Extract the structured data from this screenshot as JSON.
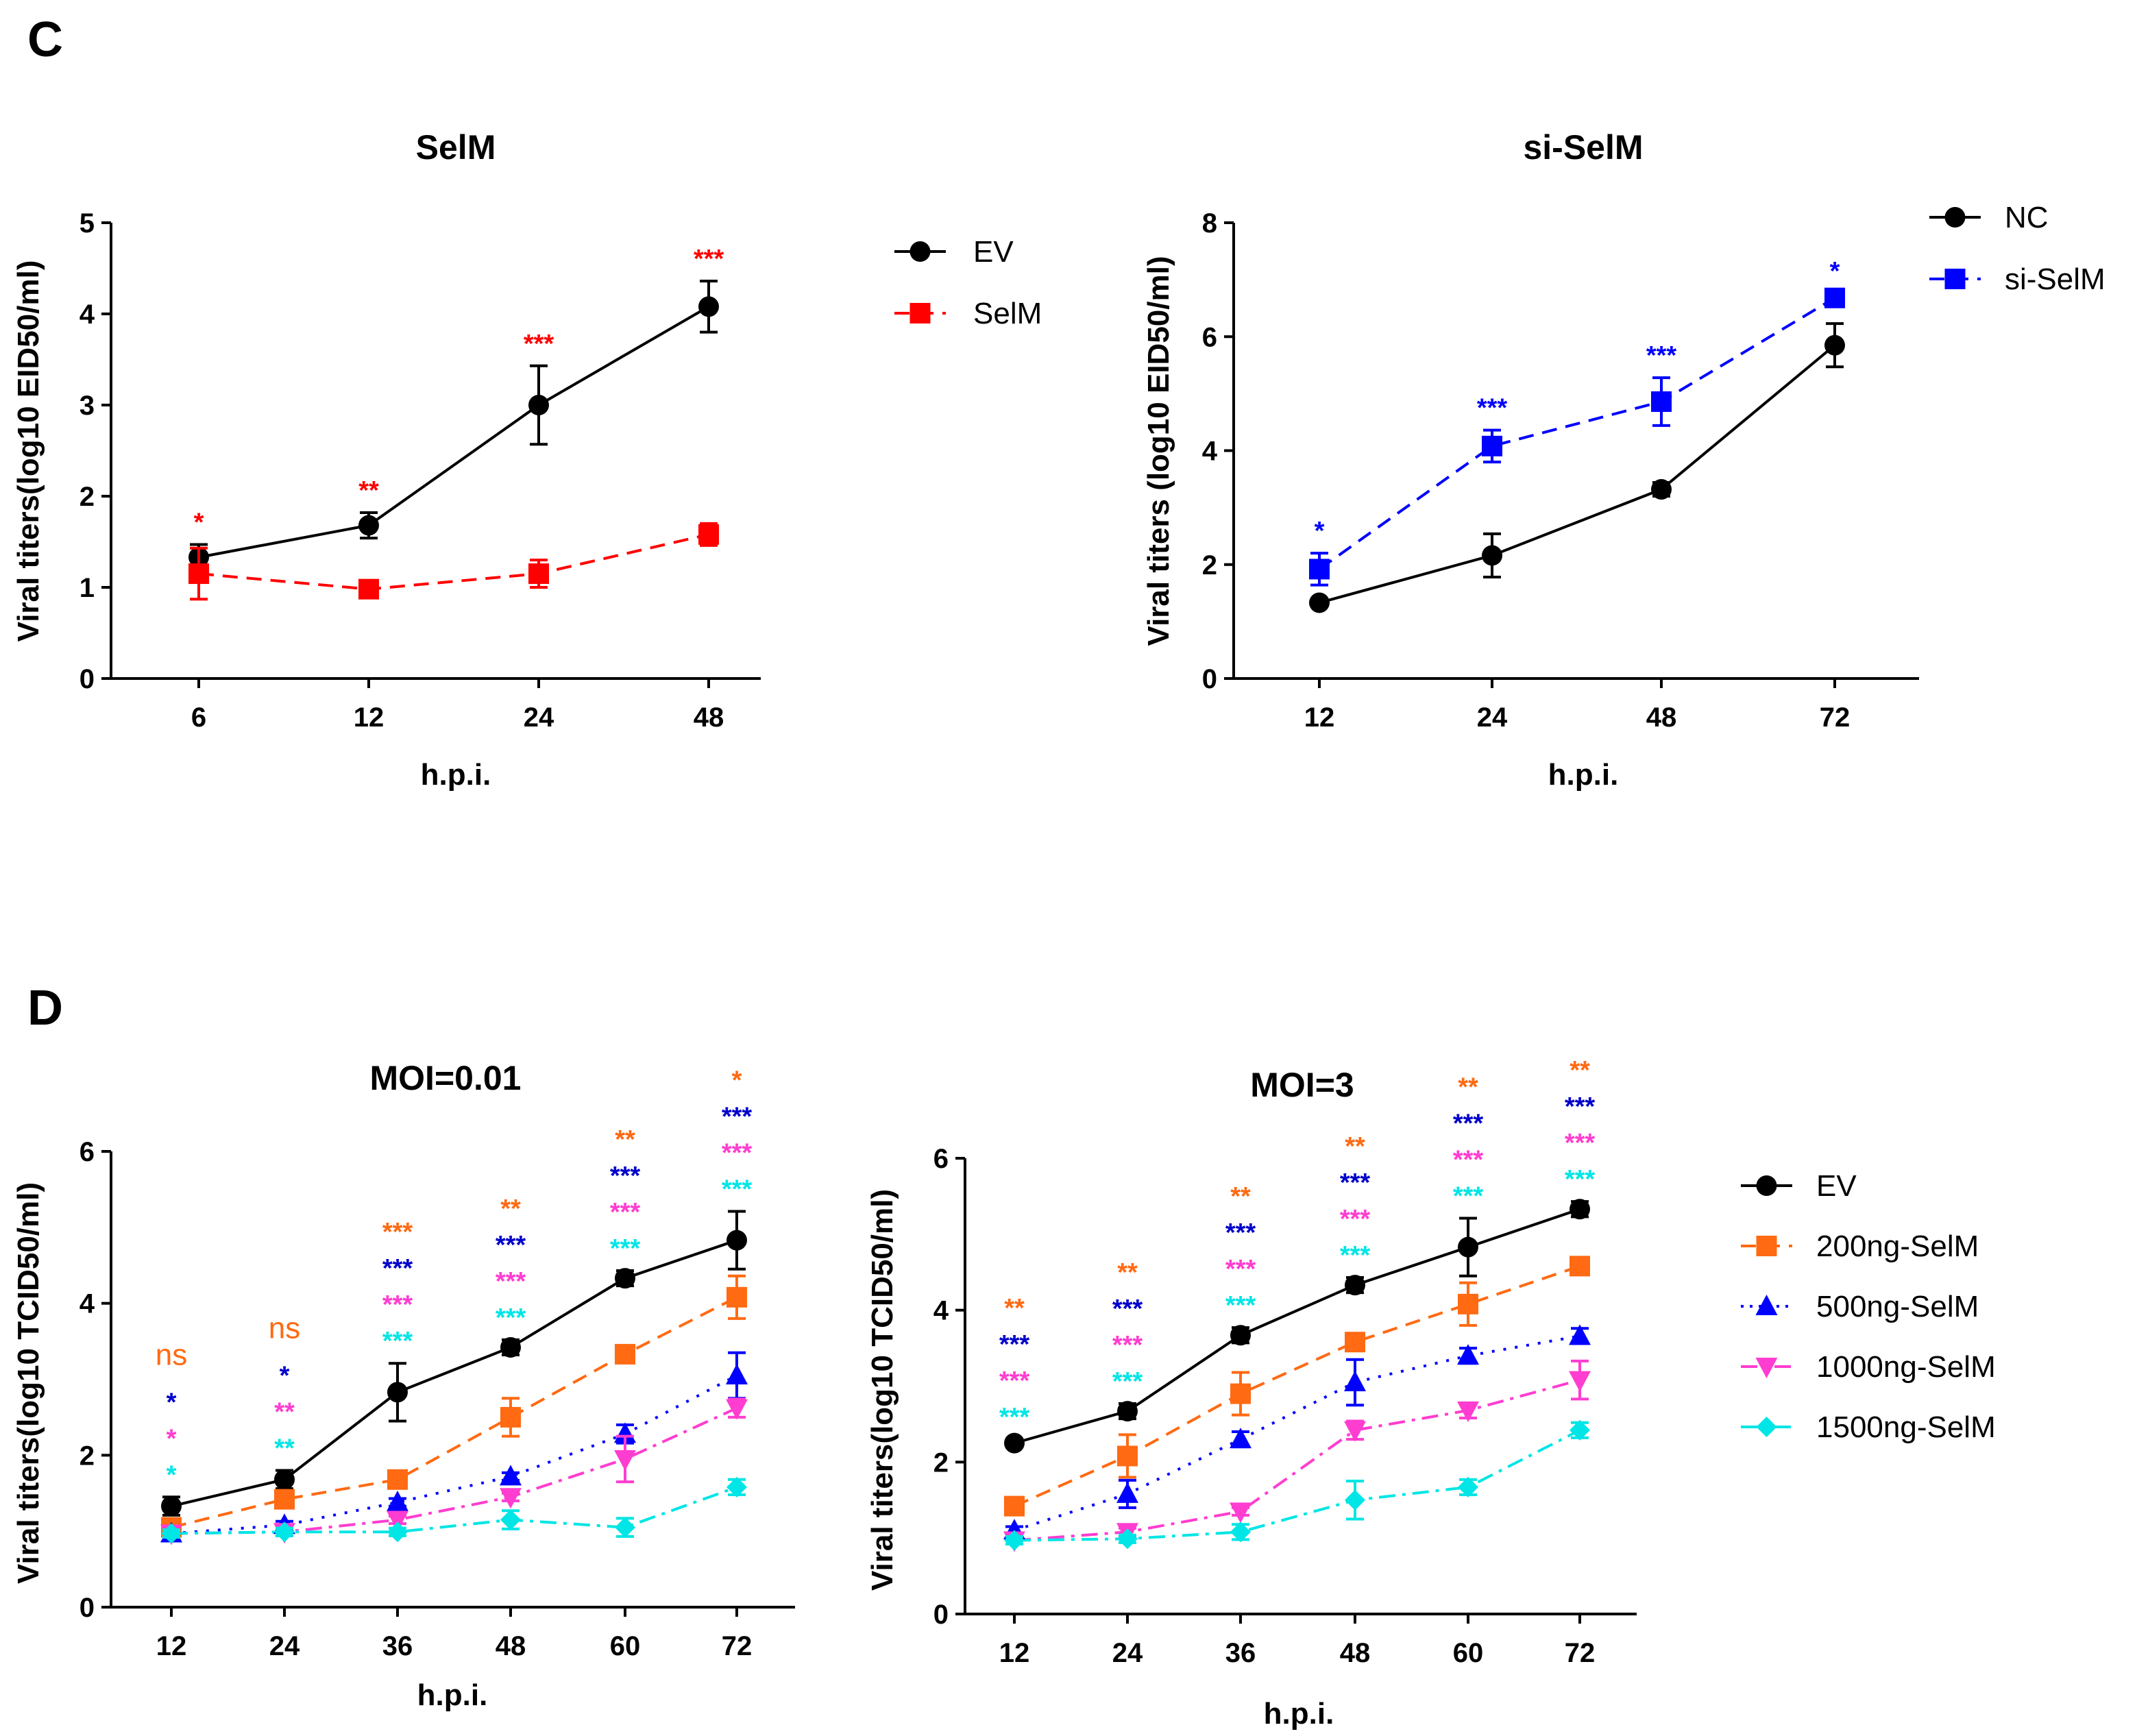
{
  "panel_labels": [
    "C",
    "D"
  ],
  "chart_data": [
    {
      "id": "c1",
      "type": "line",
      "title": "SelM",
      "xlabel": "h.p.i.",
      "ylabel": "Viral titers(log10 EID50/ml)",
      "ylim": [
        0,
        5
      ],
      "yticks": [
        "0",
        "1",
        "2",
        "3",
        "4",
        "5"
      ],
      "categories": [
        "6",
        "12",
        "24",
        "48"
      ],
      "legend_position": "right",
      "series": [
        {
          "name": "EV",
          "color": "#000000",
          "dash": "solid",
          "marker": "circle",
          "values": [
            1.33,
            1.68,
            3.0,
            4.08
          ],
          "errors": [
            0.14,
            0.14,
            0.43,
            0.28
          ]
        },
        {
          "name": "SelM",
          "color": "#ff0000",
          "dash": "dashed",
          "marker": "square",
          "values": [
            1.15,
            0.98,
            1.15,
            1.58
          ],
          "errors": [
            0.28,
            0.05,
            0.15,
            0.12
          ]
        }
      ],
      "annotations": [
        {
          "x_index": 0,
          "lines": [
            {
              "text": "*",
              "color": "#ff0000"
            }
          ]
        },
        {
          "x_index": 1,
          "lines": [
            {
              "text": "**",
              "color": "#ff0000"
            }
          ]
        },
        {
          "x_index": 2,
          "lines": [
            {
              "text": "***",
              "color": "#ff0000"
            }
          ]
        },
        {
          "x_index": 3,
          "lines": [
            {
              "text": "***",
              "color": "#ff0000"
            }
          ]
        }
      ]
    },
    {
      "id": "c2",
      "type": "line",
      "title": "si-SelM",
      "xlabel": "h.p.i.",
      "ylabel": "Viral titers (log10 EID50/ml)",
      "ylim": [
        0,
        8
      ],
      "yticks": [
        "0",
        "2",
        "4",
        "6",
        "8"
      ],
      "categories": [
        "12",
        "24",
        "48",
        "72"
      ],
      "legend_position": "top-right",
      "series": [
        {
          "name": "NC",
          "color": "#000000",
          "dash": "solid",
          "marker": "circle",
          "values": [
            1.33,
            2.16,
            3.32,
            5.85
          ],
          "errors": [
            0.05,
            0.38,
            0.12,
            0.38
          ]
        },
        {
          "name": "si-SelM",
          "color": "#0000ff",
          "dash": "dashed",
          "marker": "square",
          "values": [
            1.92,
            4.08,
            4.86,
            6.68
          ],
          "errors": [
            0.28,
            0.28,
            0.42,
            0.08
          ]
        }
      ],
      "annotations": [
        {
          "x_index": 0,
          "lines": [
            {
              "text": "*",
              "color": "#0000ff"
            }
          ]
        },
        {
          "x_index": 1,
          "lines": [
            {
              "text": "***",
              "color": "#0000ff"
            }
          ]
        },
        {
          "x_index": 2,
          "lines": [
            {
              "text": "***",
              "color": "#0000ff"
            }
          ]
        },
        {
          "x_index": 3,
          "lines": [
            {
              "text": "*",
              "color": "#0000ff"
            }
          ]
        }
      ]
    },
    {
      "id": "d1",
      "type": "line",
      "title": "MOI=0.01",
      "xlabel": "h.p.i.",
      "ylabel": "Viral titers(log10 TCID50/ml)",
      "ylim": [
        0,
        6
      ],
      "yticks": [
        "0",
        "2",
        "4",
        "6"
      ],
      "categories": [
        "12",
        "24",
        "36",
        "48",
        "60",
        "72"
      ],
      "series": [
        {
          "name": "EV",
          "color": "#000000",
          "dash": "solid",
          "marker": "circle",
          "values": [
            1.33,
            1.68,
            2.83,
            3.42,
            4.33,
            4.83
          ],
          "errors": [
            0.12,
            0.12,
            0.38,
            0.1,
            0.1,
            0.38
          ]
        },
        {
          "name": "200ng-SelM",
          "color": "#ff6a13",
          "dash": "dashed",
          "marker": "square",
          "values": [
            1.05,
            1.42,
            1.68,
            2.5,
            3.33,
            4.08
          ],
          "errors": [
            0.08,
            0.05,
            0.08,
            0.25,
            0.08,
            0.28
          ]
        },
        {
          "name": "500ng-SelM",
          "color": "#0000ff",
          "dash": "dotted",
          "marker": "triangle",
          "values": [
            0.97,
            1.08,
            1.38,
            1.72,
            2.28,
            3.05
          ],
          "errors": [
            0.05,
            0.05,
            0.05,
            0.05,
            0.12,
            0.3
          ]
        },
        {
          "name": "1000ng-SelM",
          "color": "#ff3dd0",
          "dash": "dashdot",
          "marker": "triangle-down",
          "values": [
            0.97,
            0.99,
            1.15,
            1.45,
            1.95,
            2.62
          ],
          "errors": [
            0.05,
            0.05,
            0.05,
            0.05,
            0.3,
            0.12
          ]
        },
        {
          "name": "1500ng-SelM",
          "color": "#00e5e5",
          "dash": "dashdot",
          "marker": "diamond",
          "values": [
            0.97,
            0.99,
            0.99,
            1.15,
            1.05,
            1.58
          ],
          "errors": [
            0.05,
            0.05,
            0.05,
            0.12,
            0.12,
            0.1
          ]
        }
      ],
      "annotations": [
        {
          "x_index": 0,
          "lines": [
            {
              "text": "ns",
              "color": "#ff6a13"
            },
            {
              "text": "*",
              "color": "#0000cc"
            },
            {
              "text": "*",
              "color": "#ff3dd0"
            },
            {
              "text": "*",
              "color": "#00e5e5"
            }
          ]
        },
        {
          "x_index": 1,
          "lines": [
            {
              "text": "ns",
              "color": "#ff6a13"
            },
            {
              "text": "*",
              "color": "#0000cc"
            },
            {
              "text": "**",
              "color": "#ff3dd0"
            },
            {
              "text": "**",
              "color": "#00e5e5"
            }
          ]
        },
        {
          "x_index": 2,
          "lines": [
            {
              "text": "***",
              "color": "#ff6a13"
            },
            {
              "text": "***",
              "color": "#0000cc"
            },
            {
              "text": "***",
              "color": "#ff3dd0"
            },
            {
              "text": "***",
              "color": "#00e5e5"
            }
          ]
        },
        {
          "x_index": 3,
          "lines": [
            {
              "text": "**",
              "color": "#ff6a13"
            },
            {
              "text": "***",
              "color": "#0000cc"
            },
            {
              "text": "***",
              "color": "#ff3dd0"
            },
            {
              "text": "***",
              "color": "#00e5e5"
            }
          ]
        },
        {
          "x_index": 4,
          "lines": [
            {
              "text": "**",
              "color": "#ff6a13"
            },
            {
              "text": "***",
              "color": "#0000cc"
            },
            {
              "text": "***",
              "color": "#ff3dd0"
            },
            {
              "text": "***",
              "color": "#00e5e5"
            }
          ]
        },
        {
          "x_index": 5,
          "lines": [
            {
              "text": "*",
              "color": "#ff6a13"
            },
            {
              "text": "***",
              "color": "#0000cc"
            },
            {
              "text": "***",
              "color": "#ff3dd0"
            },
            {
              "text": "***",
              "color": "#00e5e5"
            }
          ]
        }
      ]
    },
    {
      "id": "d2",
      "type": "line",
      "title": "MOI=3",
      "xlabel": "h.p.i.",
      "ylabel": "Viral titers(log10 TCID50/ml)",
      "ylim": [
        0,
        6
      ],
      "yticks": [
        "0",
        "2",
        "4",
        "6"
      ],
      "categories": [
        "12",
        "24",
        "36",
        "48",
        "60",
        "72"
      ],
      "legend_position": "right",
      "series": [
        {
          "name": "EV",
          "color": "#000000",
          "dash": "solid",
          "marker": "circle",
          "values": [
            2.25,
            2.67,
            3.67,
            4.33,
            4.83,
            5.33
          ],
          "errors": [
            0.05,
            0.1,
            0.1,
            0.1,
            0.38,
            0.1
          ]
        },
        {
          "name": "200ng-SelM",
          "color": "#ff6a13",
          "dash": "dashed",
          "marker": "square",
          "values": [
            1.42,
            2.08,
            2.9,
            3.58,
            4.08,
            4.58
          ],
          "errors": [
            0.05,
            0.28,
            0.28,
            0.08,
            0.28,
            0.08
          ]
        },
        {
          "name": "500ng-SelM",
          "color": "#0000ff",
          "dash": "dotted",
          "marker": "triangle",
          "values": [
            1.1,
            1.58,
            2.3,
            3.05,
            3.4,
            3.66
          ],
          "errors": [
            0.05,
            0.18,
            0.1,
            0.3,
            0.1,
            0.1
          ]
        },
        {
          "name": "1000ng-SelM",
          "color": "#ff3dd0",
          "dash": "dashdot",
          "marker": "triangle-down",
          "values": [
            0.97,
            1.08,
            1.35,
            2.42,
            2.68,
            3.08
          ],
          "errors": [
            0.05,
            0.05,
            0.05,
            0.12,
            0.1,
            0.25
          ]
        },
        {
          "name": "1500ng-SelM",
          "color": "#00e5e5",
          "dash": "dashdot",
          "marker": "diamond",
          "values": [
            0.97,
            0.99,
            1.08,
            1.5,
            1.67,
            2.42
          ],
          "errors": [
            0.05,
            0.05,
            0.1,
            0.25,
            0.1,
            0.1
          ]
        }
      ],
      "annotations": [
        {
          "x_index": 0,
          "lines": [
            {
              "text": "**",
              "color": "#ff6a13"
            },
            {
              "text": "***",
              "color": "#0000cc"
            },
            {
              "text": "***",
              "color": "#ff3dd0"
            },
            {
              "text": "***",
              "color": "#00e5e5"
            }
          ]
        },
        {
          "x_index": 1,
          "lines": [
            {
              "text": "**",
              "color": "#ff6a13"
            },
            {
              "text": "***",
              "color": "#0000cc"
            },
            {
              "text": "***",
              "color": "#ff3dd0"
            },
            {
              "text": "***",
              "color": "#00e5e5"
            }
          ]
        },
        {
          "x_index": 2,
          "lines": [
            {
              "text": "**",
              "color": "#ff6a13"
            },
            {
              "text": "***",
              "color": "#0000cc"
            },
            {
              "text": "***",
              "color": "#ff3dd0"
            },
            {
              "text": "***",
              "color": "#00e5e5"
            }
          ]
        },
        {
          "x_index": 3,
          "lines": [
            {
              "text": "**",
              "color": "#ff6a13"
            },
            {
              "text": "***",
              "color": "#0000cc"
            },
            {
              "text": "***",
              "color": "#ff3dd0"
            },
            {
              "text": "***",
              "color": "#00e5e5"
            }
          ]
        },
        {
          "x_index": 4,
          "lines": [
            {
              "text": "**",
              "color": "#ff6a13"
            },
            {
              "text": "***",
              "color": "#0000cc"
            },
            {
              "text": "***",
              "color": "#ff3dd0"
            },
            {
              "text": "***",
              "color": "#00e5e5"
            }
          ]
        },
        {
          "x_index": 5,
          "lines": [
            {
              "text": "**",
              "color": "#ff6a13"
            },
            {
              "text": "***",
              "color": "#0000cc"
            },
            {
              "text": "***",
              "color": "#ff3dd0"
            },
            {
              "text": "***",
              "color": "#00e5e5"
            }
          ]
        }
      ]
    }
  ]
}
